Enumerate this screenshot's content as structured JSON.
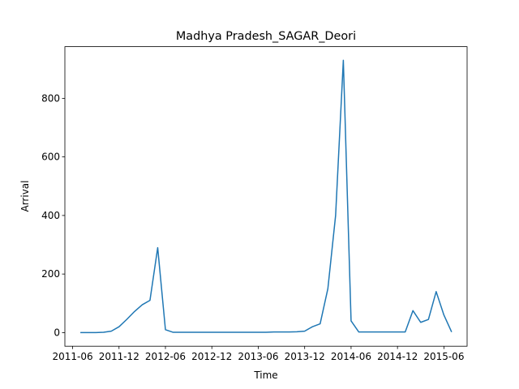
{
  "chart_data": {
    "type": "line",
    "title": "Madhya Pradesh_SAGAR_Deori",
    "x_label": "Time",
    "y_label": "Arrival",
    "x": [
      "2011-07",
      "2011-08",
      "2011-09",
      "2011-10",
      "2011-11",
      "2011-12",
      "2012-01",
      "2012-02",
      "2012-03",
      "2012-04",
      "2012-05",
      "2012-06",
      "2012-07",
      "2012-08",
      "2012-09",
      "2012-10",
      "2012-11",
      "2012-12",
      "2013-01",
      "2013-02",
      "2013-03",
      "2013-04",
      "2013-05",
      "2013-06",
      "2013-07",
      "2013-08",
      "2013-09",
      "2013-10",
      "2013-11",
      "2013-12",
      "2014-01",
      "2014-02",
      "2014-03",
      "2014-04",
      "2014-05",
      "2014-06",
      "2014-07",
      "2014-08",
      "2014-09",
      "2014-10",
      "2014-11",
      "2014-12",
      "2015-01",
      "2015-02",
      "2015-03",
      "2015-04",
      "2015-05",
      "2015-06",
      "2015-07"
    ],
    "series": [
      {
        "name": "Arrival",
        "color": "#1f77b4",
        "values": [
          0,
          0,
          0,
          1,
          5,
          20,
          45,
          72,
          95,
          110,
          290,
          10,
          1,
          1,
          1,
          1,
          1,
          1,
          1,
          1,
          1,
          1,
          1,
          1,
          1,
          2,
          2,
          2,
          3,
          5,
          20,
          30,
          150,
          400,
          930,
          40,
          2,
          2,
          2,
          2,
          2,
          2,
          2,
          75,
          35,
          45,
          140,
          60,
          2
        ]
      }
    ],
    "xlim": [
      "2011-05",
      "2015-09"
    ],
    "xticks": [
      "2011-06",
      "2011-12",
      "2012-06",
      "2012-12",
      "2013-06",
      "2013-12",
      "2014-06",
      "2014-12",
      "2015-06"
    ],
    "ylim": [
      -46.5,
      976.5
    ],
    "yticks": [
      0,
      200,
      400,
      600,
      800
    ],
    "grid": false
  }
}
